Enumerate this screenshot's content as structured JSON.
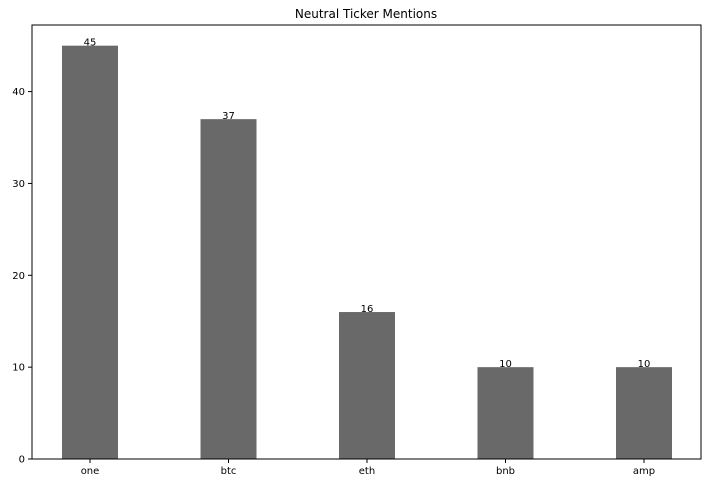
{
  "chart_data": {
    "type": "bar",
    "title": "Neutral Ticker Mentions",
    "xlabel": "",
    "ylabel": "",
    "categories": [
      "one",
      "btc",
      "eth",
      "bnb",
      "amp"
    ],
    "values": [
      45,
      37,
      16,
      10,
      10
    ],
    "data_labels": [
      "45",
      "37",
      "16",
      "10",
      "10"
    ],
    "ylim": [
      0,
      47.25
    ],
    "yticks": [
      0,
      10,
      20,
      30,
      40
    ],
    "ytick_labels": [
      "0",
      "10",
      "20",
      "30",
      "40"
    ],
    "grid": false,
    "legend": "none",
    "bar_color": "#696969"
  }
}
